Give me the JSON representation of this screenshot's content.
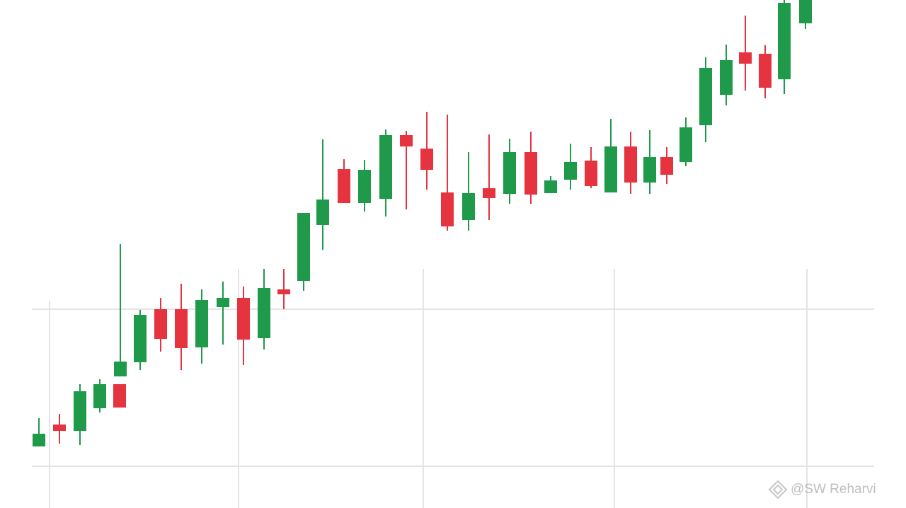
{
  "chart_data": {
    "type": "candlestick",
    "x": [
      55,
      84,
      113,
      141,
      169,
      170,
      198,
      227,
      256,
      285,
      315,
      344,
      373,
      401,
      429,
      456,
      486,
      515,
      545,
      574,
      603,
      632,
      662,
      691,
      720,
      750,
      778,
      806,
      835,
      863,
      891,
      918,
      942,
      969,
      997,
      1026,
      1053,
      1081,
      1108,
      1138
    ],
    "open": [
      87,
      118,
      109,
      141,
      175,
      186,
      206,
      281,
      281,
      227,
      284,
      297,
      240,
      309,
      321,
      400,
      479,
      431,
      437,
      527,
      508,
      446,
      407,
      452,
      444,
      503,
      445,
      464,
      491,
      446,
      511,
      460,
      496,
      489,
      541,
      584,
      644,
      642,
      606,
      685
    ],
    "high": [
      127,
      133,
      175,
      182,
      175,
      373,
      280,
      297,
      317,
      309,
      320,
      313,
      338,
      338,
      417,
      521,
      493,
      492,
      535,
      533,
      560,
      556,
      503,
      528,
      522,
      532,
      469,
      515,
      510,
      550,
      532,
      534,
      510,
      552,
      637,
      655,
      696,
      654,
      718,
      718
    ],
    "low": [
      87,
      91,
      89,
      135,
      142,
      186,
      195,
      221,
      195,
      204,
      231,
      202,
      224,
      281,
      307,
      365,
      431,
      419,
      412,
      422,
      450,
      392,
      392,
      407,
      430,
      430,
      445,
      450,
      452,
      446,
      444,
      444,
      458,
      483,
      517,
      569,
      590,
      579,
      585,
      677
    ],
    "close": [
      105,
      109,
      165,
      175,
      142,
      207,
      273,
      239,
      226,
      294,
      297,
      238,
      311,
      302,
      417,
      436,
      431,
      478,
      527,
      511,
      478,
      398,
      445,
      438,
      503,
      443,
      463,
      489,
      455,
      511,
      460,
      496,
      471,
      538,
      622,
      633,
      628,
      594,
      714,
      718
    ],
    "up_color": "#1e9a4a",
    "down_color": "#e5343f",
    "xlim": [
      0,
      1280
    ],
    "ylim": [
      0,
      718
    ],
    "xticks": [
      70,
      337,
      598,
      868,
      1140
    ],
    "yticks": [
      59,
      281
    ],
    "grid": true,
    "watermark": "@SW Reharvi"
  }
}
